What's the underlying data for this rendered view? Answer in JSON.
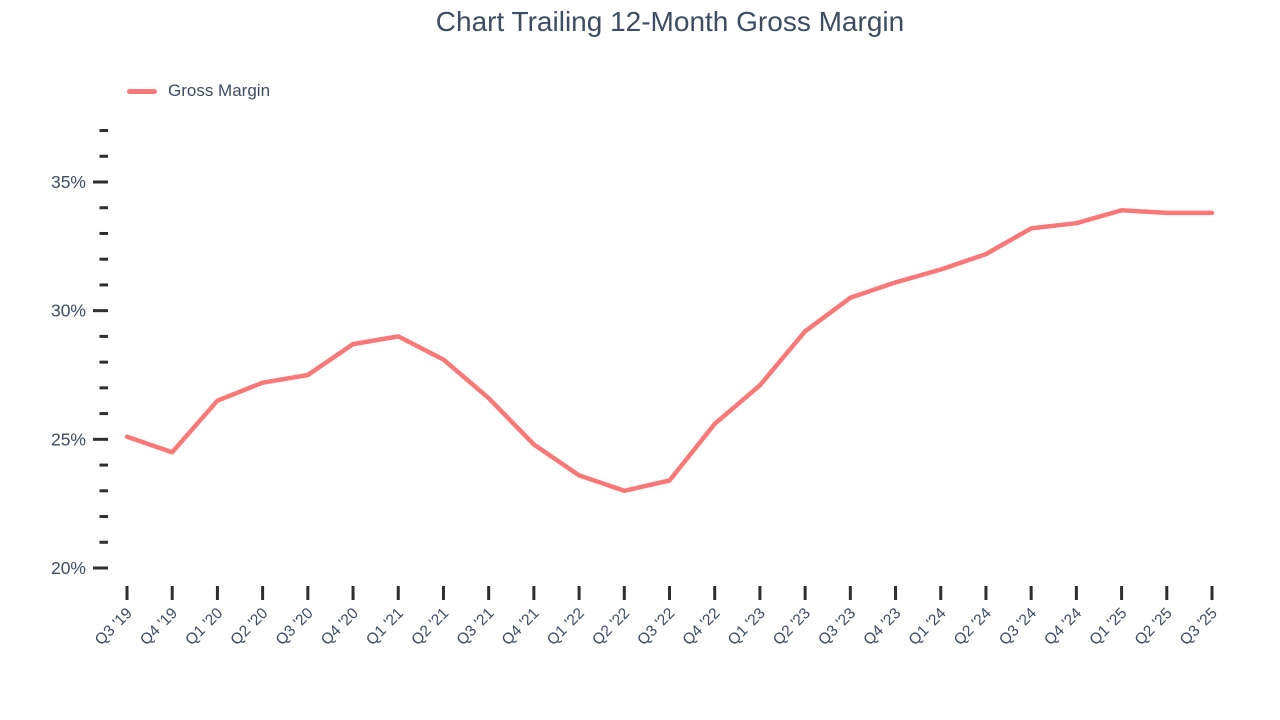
{
  "title": "Chart Trailing 12-Month Gross Margin",
  "legend": {
    "items": [
      {
        "label": "Gross Margin",
        "color": "#fa7878"
      }
    ]
  },
  "colors": {
    "line": "#fa7878",
    "text": "#3d4c62",
    "tick": "#2e2e2e",
    "background": "#ffffff"
  },
  "chart_data": {
    "type": "line",
    "title": "Chart Trailing 12-Month Gross Margin",
    "xlabel": "",
    "ylabel": "",
    "categories": [
      "Q3 '19",
      "Q4 '19",
      "Q1 '20",
      "Q2 '20",
      "Q3 '20",
      "Q4 '20",
      "Q1 '21",
      "Q2 '21",
      "Q3 '21",
      "Q4 '21",
      "Q1 '22",
      "Q2 '22",
      "Q3 '22",
      "Q4 '22",
      "Q1 '23",
      "Q2 '23",
      "Q3 '23",
      "Q4 '23",
      "Q1 '24",
      "Q2 '24",
      "Q3 '24",
      "Q4 '24",
      "Q1 '25",
      "Q2 '25",
      "Q3 '25"
    ],
    "series": [
      {
        "name": "Gross Margin",
        "color": "#fa7878",
        "values": [
          25.1,
          24.5,
          26.5,
          27.2,
          27.5,
          28.7,
          29.0,
          28.1,
          26.6,
          24.8,
          23.6,
          23.0,
          23.4,
          25.6,
          27.1,
          29.2,
          30.5,
          31.1,
          31.6,
          32.2,
          33.2,
          33.4,
          33.9,
          33.8,
          33.8
        ]
      }
    ],
    "y_major_ticks": [
      20,
      25,
      30,
      35
    ],
    "y_minor_tick_step": 1,
    "ylim": [
      20,
      37
    ],
    "y_tick_suffix": "%",
    "grid": false,
    "legend_position": "top-left",
    "x_label_rotation": -45
  }
}
